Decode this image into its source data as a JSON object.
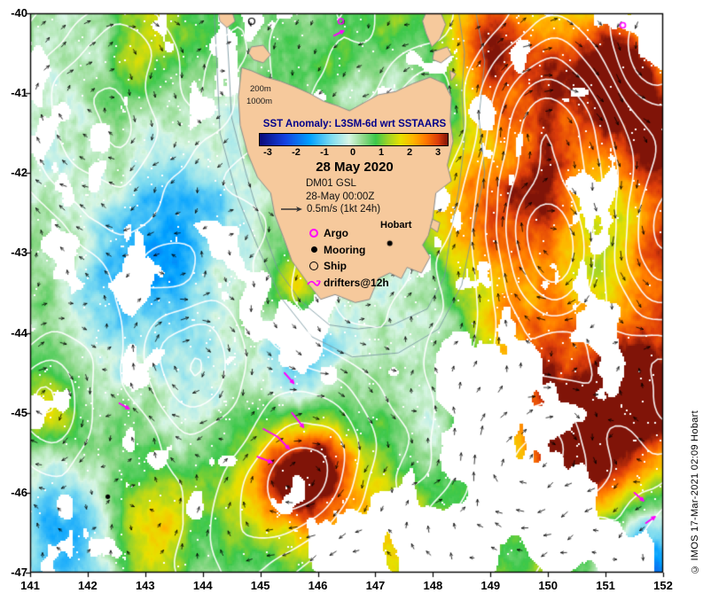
{
  "colorbar": {
    "title": "SST Anomaly: L3SM-6d wrt SSTAARS",
    "title_color": "#00008b",
    "ticks": [
      "-3",
      "-2",
      "-1",
      "0",
      "1",
      "2",
      "3"
    ],
    "gradient_stops": [
      {
        "value": -3.0,
        "color": "#0a0a78"
      },
      {
        "value": -2.2,
        "color": "#1440e0"
      },
      {
        "value": -1.4,
        "color": "#00a0ff"
      },
      {
        "value": -0.7,
        "color": "#7fdcf0"
      },
      {
        "value": -0.15,
        "color": "#d8f6e4"
      },
      {
        "value": 0.3,
        "color": "#8fd98a"
      },
      {
        "value": 0.7,
        "color": "#3cc84a"
      },
      {
        "value": 1.1,
        "color": "#9fd426"
      },
      {
        "value": 1.5,
        "color": "#e8e000"
      },
      {
        "value": 1.9,
        "color": "#ffb400"
      },
      {
        "value": 2.3,
        "color": "#ff7800"
      },
      {
        "value": 2.7,
        "color": "#dc3c0a"
      },
      {
        "value": 3.0,
        "color": "#801408"
      }
    ]
  },
  "info": {
    "date": "28 May 2020",
    "product": "DM01 GSL",
    "time": "28-May 00:00Z",
    "vector_scale": "0.5m/s (1kt 24h)"
  },
  "legend": {
    "items": [
      {
        "symbol": "argo-icon",
        "label": "Argo",
        "color": "#ff00ff"
      },
      {
        "symbol": "mooring-icon",
        "label": "Mooring",
        "color": "#000000"
      },
      {
        "symbol": "ship-icon",
        "label": "Ship",
        "color": "#000000"
      },
      {
        "symbol": "drifter-icon",
        "label": "drifters@12h",
        "color": "#ff00ff"
      }
    ]
  },
  "map_labels": {
    "hobart": "Hobart",
    "depth_200": "200m",
    "depth_1000": "1000m"
  },
  "axes": {
    "x_ticks": [
      "141",
      "142",
      "143",
      "144",
      "145",
      "146",
      "147",
      "148",
      "149",
      "150",
      "151",
      "152"
    ],
    "y_ticks": [
      "-40",
      "-41",
      "-42",
      "-43",
      "-44",
      "-45",
      "-46",
      "-47"
    ]
  },
  "credit": "© IMOS 17-Mar-2021 02:09 Hobart",
  "chart_data": {
    "type": "heatmap",
    "title": "SST Anomaly: L3SM-6d wrt SSTAARS",
    "date": "28 May 2020",
    "field": "sea surface temperature anomaly",
    "x_range": [
      141,
      152
    ],
    "y_range": [
      -47,
      -40
    ],
    "colorbar_range": [
      -3,
      3
    ],
    "land_color": "#f6c99c",
    "sea_base_anomaly": 0.45,
    "anomaly_blobs": [
      [
        150.3,
        -40.8,
        2.0,
        0.9
      ],
      [
        151.6,
        -40.9,
        2.4,
        0.6
      ],
      [
        149.0,
        -40.35,
        1.5,
        0.5
      ],
      [
        149.6,
        -42.6,
        1.9,
        0.8
      ],
      [
        152.1,
        -43.2,
        1.8,
        0.6
      ],
      [
        152.0,
        -42.0,
        1.6,
        0.5
      ],
      [
        149.9,
        -44.35,
        1.6,
        0.7
      ],
      [
        150.7,
        -45.5,
        2.7,
        0.85
      ],
      [
        151.8,
        -44.6,
        2.0,
        0.7
      ],
      [
        145.9,
        -45.8,
        2.7,
        0.5
      ],
      [
        144.9,
        -45.95,
        1.4,
        0.6
      ],
      [
        147.0,
        -46.6,
        1.4,
        0.7
      ],
      [
        143.1,
        -46.4,
        1.0,
        0.5
      ],
      [
        141.3,
        -44.9,
        1.3,
        0.4
      ],
      [
        145.6,
        -43.45,
        1.5,
        0.35
      ],
      [
        148.5,
        -42.4,
        1.2,
        0.4
      ],
      [
        142.9,
        -40.3,
        0.9,
        0.6
      ],
      [
        143.6,
        -42.9,
        -1.7,
        0.8
      ],
      [
        142.6,
        -43.4,
        -1.1,
        0.6
      ],
      [
        141.5,
        -46.6,
        -1.9,
        0.7
      ],
      [
        151.7,
        -46.9,
        -2.4,
        0.6
      ],
      [
        146.5,
        -44.0,
        -0.8,
        0.7
      ],
      [
        145.6,
        -44.35,
        -0.9,
        0.45
      ],
      [
        141.2,
        -42.0,
        -0.7,
        0.6
      ],
      [
        152.1,
        -40.1,
        -1.6,
        0.45
      ],
      [
        147.9,
        -44.6,
        -0.6,
        0.5
      ],
      [
        144.1,
        -44.6,
        -0.6,
        0.6
      ],
      [
        142.0,
        -40.15,
        -0.5,
        0.4
      ]
    ],
    "cloud_gaps": [
      [
        148.8,
        -44.75,
        0.45,
        0.5
      ],
      [
        149.4,
        -45.95,
        0.5,
        0.5
      ],
      [
        150.3,
        -46.5,
        0.4,
        0.45
      ],
      [
        147.9,
        -46.4,
        0.35,
        0.4
      ],
      [
        144.25,
        -42.85,
        0.3,
        0.25
      ],
      [
        151.0,
        -44.05,
        0.3,
        0.3
      ],
      [
        146.9,
        -46.95,
        0.45,
        0.5
      ],
      [
        150.7,
        -43.95,
        0.25,
        0.25
      ],
      [
        151.9,
        -40.3,
        0.3,
        0.3
      ],
      [
        148.4,
        -46.9,
        0.35,
        0.4
      ]
    ],
    "eddies": [
      [
        150.0,
        -41.25,
        1.0,
        0.65
      ],
      [
        149.95,
        -42.85,
        1.3,
        0.75
      ],
      [
        145.85,
        -45.7,
        1.2,
        0.7
      ],
      [
        149.8,
        -45.55,
        1.0,
        0.8
      ],
      [
        143.9,
        -44.35,
        0.8,
        0.6
      ],
      [
        142.2,
        -41.4,
        0.9,
        1.0
      ],
      [
        141.3,
        -44.85,
        0.6,
        0.5
      ],
      [
        146.9,
        -44.0,
        -0.5,
        0.9
      ],
      [
        152.3,
        -44.8,
        0.9,
        0.8
      ],
      [
        152.0,
        -42.9,
        -0.5,
        0.6
      ],
      [
        151.9,
        -40.6,
        -0.7,
        0.5
      ],
      [
        144.6,
        -46.6,
        0.5,
        0.7
      ],
      [
        147.6,
        -41.5,
        -0.45,
        0.8
      ]
    ],
    "markers": {
      "argo": [
        [
          146.4,
          -40.1
        ],
        [
          151.3,
          -40.15
        ]
      ],
      "mooring": [
        [
          142.35,
          -46.05
        ]
      ],
      "ship": [
        [
          144.85,
          -40.1
        ]
      ],
      "city": {
        "name": "Hobart",
        "lon": 147.25,
        "lat": -42.88
      },
      "drifter_tracks": [
        [
          [
            145.05,
            -45.2
          ],
          [
            145.3,
            -45.3
          ],
          [
            145.5,
            -45.45
          ]
        ],
        [
          [
            144.95,
            -45.55
          ],
          [
            145.2,
            -45.62
          ]
        ],
        [
          [
            145.55,
            -45.0
          ],
          [
            145.75,
            -45.18
          ]
        ],
        [
          [
            145.42,
            -44.5
          ],
          [
            145.58,
            -44.63
          ]
        ],
        [
          [
            142.55,
            -44.88
          ],
          [
            142.72,
            -44.95
          ]
        ],
        [
          [
            151.5,
            -46.0
          ],
          [
            151.66,
            -46.1
          ]
        ],
        [
          [
            151.7,
            -46.38
          ],
          [
            151.86,
            -46.3
          ]
        ],
        [
          [
            146.28,
            -40.28
          ],
          [
            146.45,
            -40.22
          ]
        ]
      ]
    },
    "bathymetry": [
      {
        "depth": "200m",
        "points": [
          [
            144.4,
            -40.0
          ],
          [
            144.45,
            -40.6
          ],
          [
            144.5,
            -41.3
          ],
          [
            144.75,
            -42.0
          ],
          [
            145.0,
            -42.6
          ],
          [
            145.3,
            -43.2
          ],
          [
            145.7,
            -43.6
          ],
          [
            146.2,
            -43.9
          ],
          [
            146.7,
            -43.95
          ],
          [
            147.3,
            -43.9
          ],
          [
            147.9,
            -43.7
          ],
          [
            148.2,
            -43.3
          ],
          [
            148.3,
            -42.8
          ],
          [
            148.45,
            -42.2
          ],
          [
            148.55,
            -41.6
          ],
          [
            148.5,
            -41.0
          ],
          [
            148.55,
            -40.5
          ],
          [
            148.45,
            -40.0
          ]
        ]
      },
      {
        "depth": "1000m",
        "points": [
          [
            144.2,
            -40.0
          ],
          [
            144.25,
            -40.7
          ],
          [
            144.3,
            -41.5
          ],
          [
            144.6,
            -42.3
          ],
          [
            145.0,
            -43.0
          ],
          [
            145.35,
            -43.55
          ],
          [
            145.9,
            -44.05
          ],
          [
            146.6,
            -44.3
          ],
          [
            147.4,
            -44.25
          ],
          [
            148.1,
            -43.95
          ],
          [
            148.5,
            -43.4
          ],
          [
            148.7,
            -42.7
          ],
          [
            148.9,
            -42.0
          ],
          [
            148.8,
            -41.3
          ],
          [
            148.9,
            -40.6
          ],
          [
            148.75,
            -40.0
          ]
        ]
      }
    ]
  }
}
